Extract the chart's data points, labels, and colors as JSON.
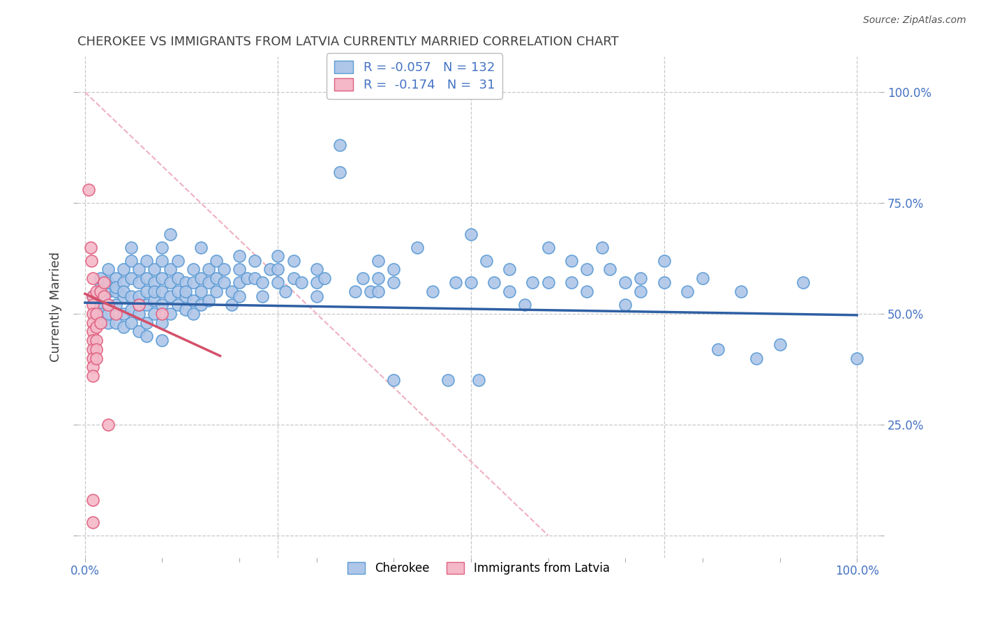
{
  "title": "CHEROKEE VS IMMIGRANTS FROM LATVIA CURRENTLY MARRIED CORRELATION CHART",
  "source": "Source: ZipAtlas.com",
  "ylabel": "Currently Married",
  "legend_label1": "Cherokee",
  "legend_label2": "Immigrants from Latvia",
  "blue_color": "#aec6e8",
  "blue_edge_color": "#5b9bd5",
  "pink_color": "#f4b8c8",
  "pink_edge_color": "#e06080",
  "blue_line_color": "#2e5fa3",
  "pink_line_color": "#d4506a",
  "diag_line_color": "#f0b0c0",
  "axis_color": "#4472c4",
  "title_color": "#404040",
  "grid_color": "#c8c8c8",
  "blue_scatter": [
    [
      0.01,
      0.54
    ],
    [
      0.02,
      0.56
    ],
    [
      0.02,
      0.52
    ],
    [
      0.02,
      0.5
    ],
    [
      0.02,
      0.58
    ],
    [
      0.03,
      0.55
    ],
    [
      0.03,
      0.52
    ],
    [
      0.03,
      0.48
    ],
    [
      0.03,
      0.6
    ],
    [
      0.03,
      0.57
    ],
    [
      0.03,
      0.5
    ],
    [
      0.04,
      0.58
    ],
    [
      0.04,
      0.55
    ],
    [
      0.04,
      0.52
    ],
    [
      0.04,
      0.48
    ],
    [
      0.04,
      0.56
    ],
    [
      0.05,
      0.6
    ],
    [
      0.05,
      0.57
    ],
    [
      0.05,
      0.54
    ],
    [
      0.05,
      0.5
    ],
    [
      0.05,
      0.47
    ],
    [
      0.05,
      0.55
    ],
    [
      0.06,
      0.58
    ],
    [
      0.06,
      0.54
    ],
    [
      0.06,
      0.51
    ],
    [
      0.06,
      0.62
    ],
    [
      0.06,
      0.48
    ],
    [
      0.06,
      0.65
    ],
    [
      0.07,
      0.6
    ],
    [
      0.07,
      0.57
    ],
    [
      0.07,
      0.54
    ],
    [
      0.07,
      0.5
    ],
    [
      0.07,
      0.46
    ],
    [
      0.07,
      0.52
    ],
    [
      0.08,
      0.62
    ],
    [
      0.08,
      0.58
    ],
    [
      0.08,
      0.55
    ],
    [
      0.08,
      0.52
    ],
    [
      0.08,
      0.48
    ],
    [
      0.08,
      0.45
    ],
    [
      0.09,
      0.6
    ],
    [
      0.09,
      0.57
    ],
    [
      0.09,
      0.53
    ],
    [
      0.09,
      0.5
    ],
    [
      0.09,
      0.55
    ],
    [
      0.1,
      0.62
    ],
    [
      0.1,
      0.58
    ],
    [
      0.1,
      0.55
    ],
    [
      0.1,
      0.52
    ],
    [
      0.1,
      0.48
    ],
    [
      0.1,
      0.44
    ],
    [
      0.1,
      0.65
    ],
    [
      0.11,
      0.6
    ],
    [
      0.11,
      0.57
    ],
    [
      0.11,
      0.54
    ],
    [
      0.11,
      0.5
    ],
    [
      0.11,
      0.68
    ],
    [
      0.12,
      0.62
    ],
    [
      0.12,
      0.58
    ],
    [
      0.12,
      0.55
    ],
    [
      0.12,
      0.52
    ],
    [
      0.13,
      0.57
    ],
    [
      0.13,
      0.54
    ],
    [
      0.13,
      0.51
    ],
    [
      0.13,
      0.55
    ],
    [
      0.14,
      0.6
    ],
    [
      0.14,
      0.57
    ],
    [
      0.14,
      0.53
    ],
    [
      0.14,
      0.5
    ],
    [
      0.15,
      0.65
    ],
    [
      0.15,
      0.58
    ],
    [
      0.15,
      0.55
    ],
    [
      0.15,
      0.52
    ],
    [
      0.16,
      0.6
    ],
    [
      0.16,
      0.57
    ],
    [
      0.16,
      0.53
    ],
    [
      0.17,
      0.62
    ],
    [
      0.17,
      0.58
    ],
    [
      0.17,
      0.55
    ],
    [
      0.18,
      0.6
    ],
    [
      0.18,
      0.57
    ],
    [
      0.19,
      0.55
    ],
    [
      0.19,
      0.52
    ],
    [
      0.2,
      0.63
    ],
    [
      0.2,
      0.6
    ],
    [
      0.2,
      0.57
    ],
    [
      0.2,
      0.54
    ],
    [
      0.21,
      0.58
    ],
    [
      0.22,
      0.62
    ],
    [
      0.22,
      0.58
    ],
    [
      0.23,
      0.57
    ],
    [
      0.23,
      0.54
    ],
    [
      0.24,
      0.6
    ],
    [
      0.25,
      0.63
    ],
    [
      0.25,
      0.6
    ],
    [
      0.25,
      0.57
    ],
    [
      0.26,
      0.55
    ],
    [
      0.27,
      0.62
    ],
    [
      0.27,
      0.58
    ],
    [
      0.28,
      0.57
    ],
    [
      0.3,
      0.6
    ],
    [
      0.3,
      0.57
    ],
    [
      0.3,
      0.54
    ],
    [
      0.31,
      0.58
    ],
    [
      0.33,
      0.88
    ],
    [
      0.33,
      0.82
    ],
    [
      0.35,
      0.55
    ],
    [
      0.36,
      0.58
    ],
    [
      0.37,
      0.55
    ],
    [
      0.38,
      0.62
    ],
    [
      0.38,
      0.58
    ],
    [
      0.38,
      0.55
    ],
    [
      0.4,
      0.6
    ],
    [
      0.4,
      0.57
    ],
    [
      0.4,
      0.35
    ],
    [
      0.43,
      0.65
    ],
    [
      0.45,
      0.55
    ],
    [
      0.47,
      0.35
    ],
    [
      0.48,
      0.57
    ],
    [
      0.5,
      0.68
    ],
    [
      0.5,
      0.57
    ],
    [
      0.51,
      0.35
    ],
    [
      0.52,
      0.62
    ],
    [
      0.53,
      0.57
    ],
    [
      0.55,
      0.6
    ],
    [
      0.55,
      0.55
    ],
    [
      0.57,
      0.52
    ],
    [
      0.58,
      0.57
    ],
    [
      0.6,
      0.65
    ],
    [
      0.6,
      0.57
    ],
    [
      0.63,
      0.62
    ],
    [
      0.63,
      0.57
    ],
    [
      0.65,
      0.6
    ],
    [
      0.65,
      0.55
    ],
    [
      0.67,
      0.65
    ],
    [
      0.68,
      0.6
    ],
    [
      0.7,
      0.57
    ],
    [
      0.7,
      0.52
    ],
    [
      0.72,
      0.58
    ],
    [
      0.72,
      0.55
    ],
    [
      0.75,
      0.62
    ],
    [
      0.75,
      0.57
    ],
    [
      0.78,
      0.55
    ],
    [
      0.8,
      0.58
    ],
    [
      0.82,
      0.42
    ],
    [
      0.85,
      0.55
    ],
    [
      0.87,
      0.4
    ],
    [
      0.9,
      0.43
    ],
    [
      0.93,
      0.57
    ],
    [
      1.0,
      0.4
    ]
  ],
  "pink_scatter": [
    [
      0.005,
      0.78
    ],
    [
      0.007,
      0.65
    ],
    [
      0.008,
      0.62
    ],
    [
      0.01,
      0.58
    ],
    [
      0.01,
      0.54
    ],
    [
      0.01,
      0.52
    ],
    [
      0.01,
      0.5
    ],
    [
      0.01,
      0.48
    ],
    [
      0.01,
      0.46
    ],
    [
      0.01,
      0.44
    ],
    [
      0.01,
      0.42
    ],
    [
      0.01,
      0.4
    ],
    [
      0.01,
      0.38
    ],
    [
      0.01,
      0.36
    ],
    [
      0.01,
      0.08
    ],
    [
      0.01,
      0.03
    ],
    [
      0.015,
      0.55
    ],
    [
      0.015,
      0.5
    ],
    [
      0.015,
      0.47
    ],
    [
      0.015,
      0.44
    ],
    [
      0.015,
      0.42
    ],
    [
      0.015,
      0.4
    ],
    [
      0.02,
      0.55
    ],
    [
      0.02,
      0.48
    ],
    [
      0.025,
      0.57
    ],
    [
      0.025,
      0.54
    ],
    [
      0.03,
      0.52
    ],
    [
      0.03,
      0.25
    ],
    [
      0.04,
      0.5
    ],
    [
      0.07,
      0.52
    ],
    [
      0.1,
      0.5
    ]
  ],
  "blue_line": {
    "x_start": 0.0,
    "x_end": 1.0,
    "y_start": 0.525,
    "y_end": 0.497
  },
  "pink_line": {
    "x_start": 0.0,
    "x_end": 0.175,
    "y_start": 0.545,
    "y_end": 0.405
  },
  "diag_line": {
    "x_start": 0.0,
    "x_end": 0.6,
    "y_start": 1.0,
    "y_end": 0.0
  },
  "xlim": [
    -0.01,
    1.03
  ],
  "ylim": [
    -0.05,
    1.08
  ]
}
